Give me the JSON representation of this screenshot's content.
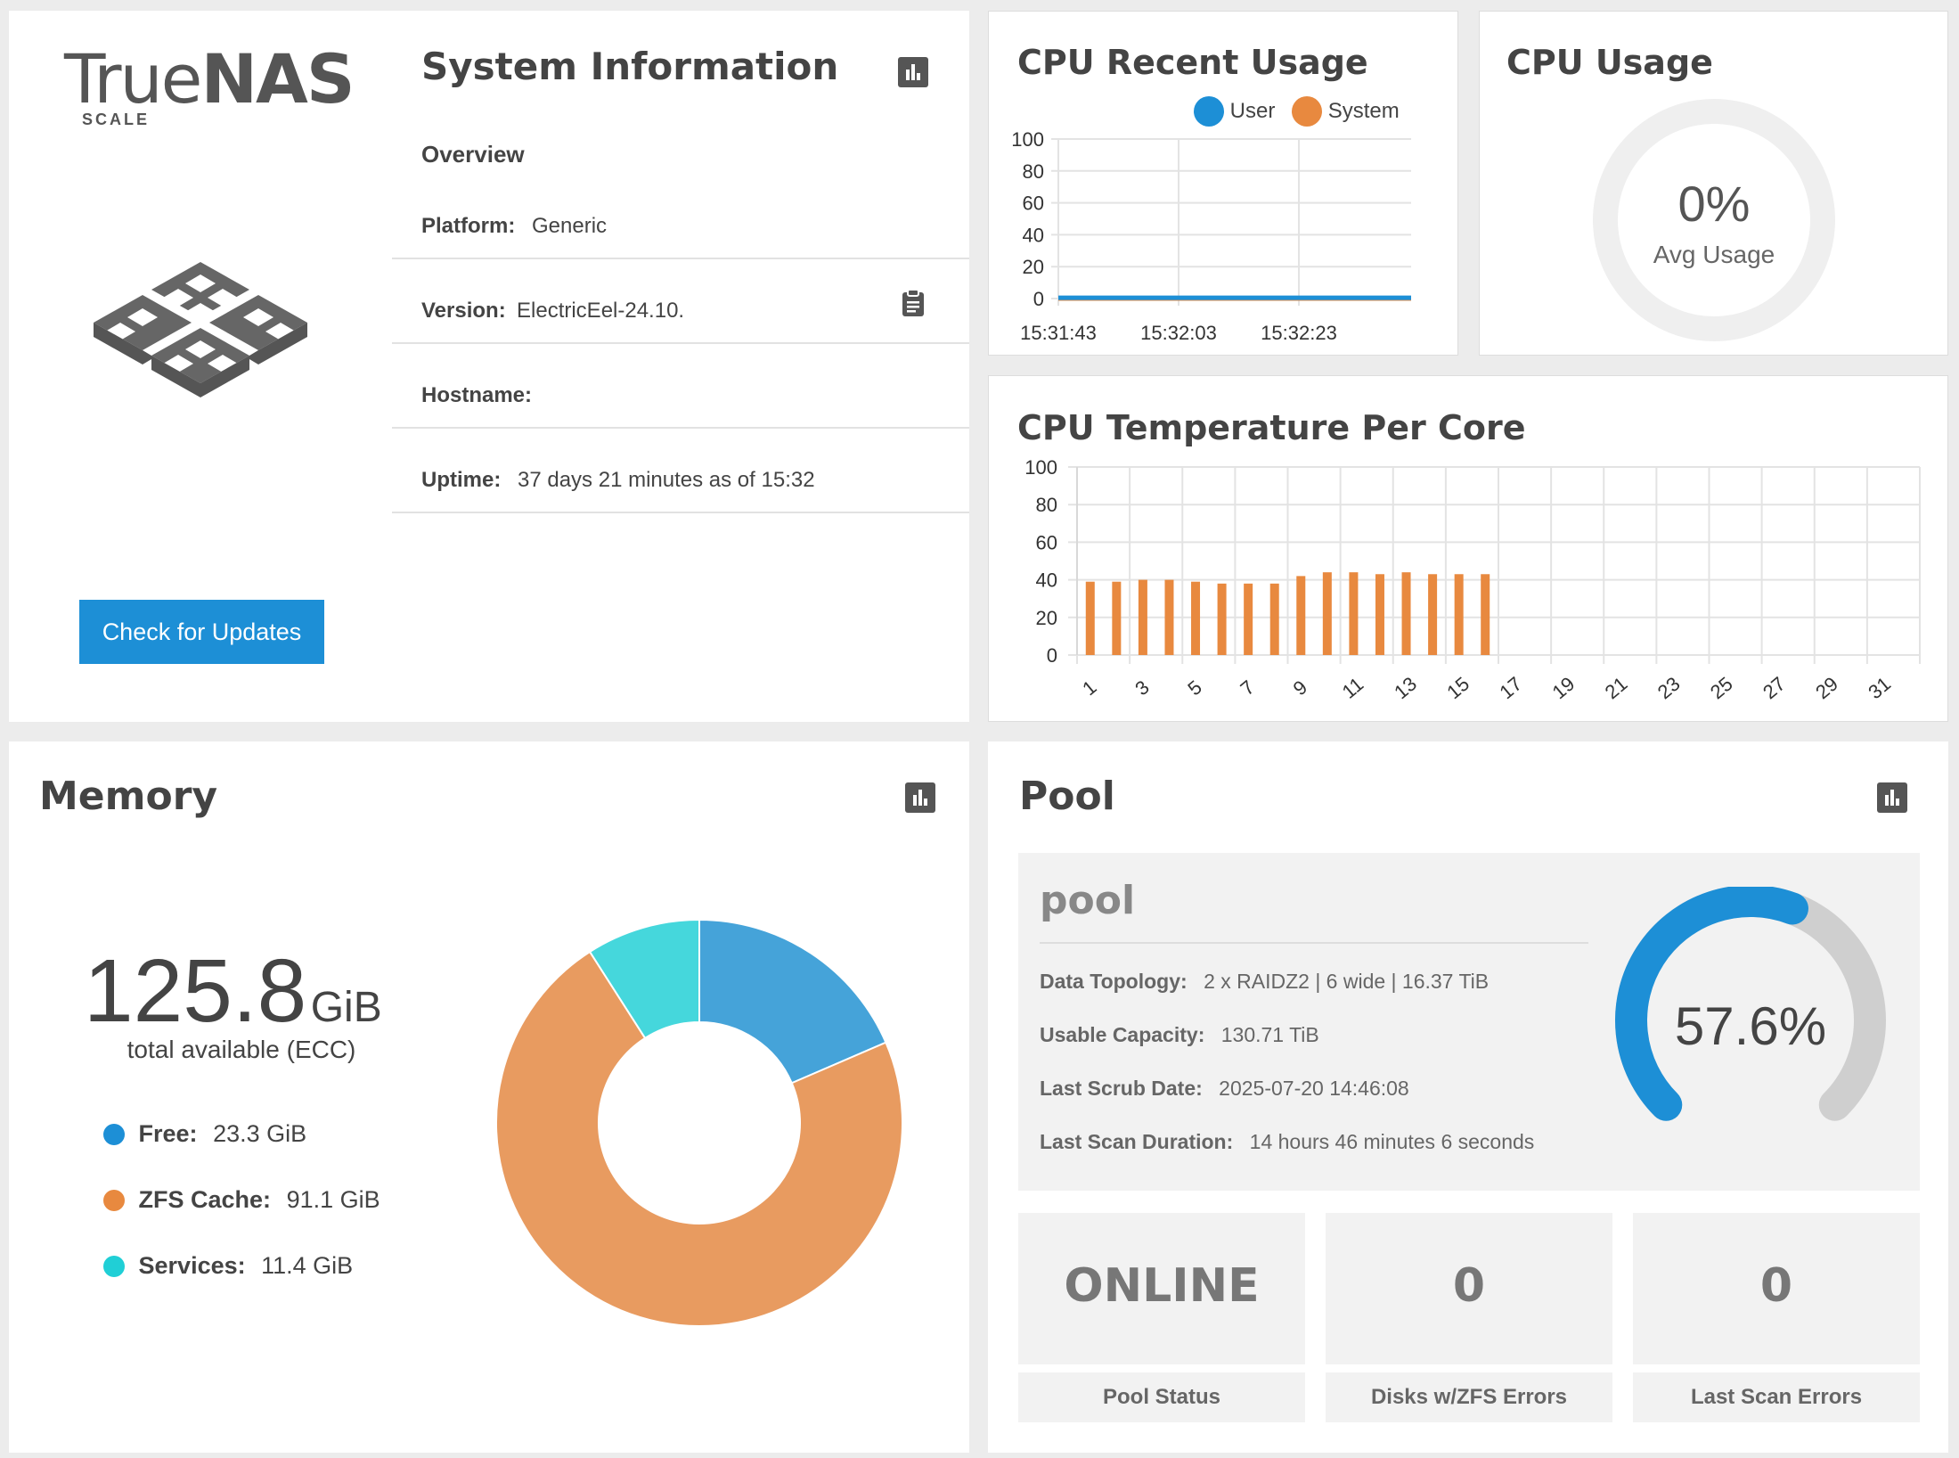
{
  "brand": {
    "name_true": "True",
    "name_nas": "NAS",
    "edition": "SCALE"
  },
  "sysinfo": {
    "title": "System Information",
    "overview": "Overview",
    "platform_label": "Platform:",
    "platform": "Generic",
    "version_label": "Version:",
    "version": "ElectricEel-24.10.",
    "hostname_label": "Hostname:",
    "hostname": "",
    "uptime_label": "Uptime:",
    "uptime": "37 days 21 minutes as of 15:32",
    "update_button": "Check for Updates"
  },
  "cpu_recent": {
    "title": "CPU Recent Usage",
    "chart_data": {
      "type": "line",
      "x": [
        "15:31:43",
        "15:32:03",
        "15:32:23"
      ],
      "ylim": [
        0,
        100
      ],
      "yticks": [
        "100",
        "80",
        "60",
        "40",
        "20",
        "0"
      ],
      "series": [
        {
          "name": "User",
          "color": "#1d8fd6",
          "values": [
            0.5,
            0.5,
            0.5
          ]
        },
        {
          "name": "System",
          "color": "#e8893f",
          "values": [
            0,
            0,
            0
          ]
        }
      ]
    }
  },
  "cpu_usage": {
    "title": "CPU Usage",
    "value": "0%",
    "caption": "Avg Usage"
  },
  "cpu_temp": {
    "title": "CPU Temperature Per Core",
    "chart_data": {
      "type": "bar",
      "ylim": [
        0,
        100
      ],
      "yticks": [
        "100",
        "80",
        "60",
        "40",
        "20",
        "0"
      ],
      "xticks": [
        "1",
        "3",
        "5",
        "7",
        "9",
        "11",
        "13",
        "15",
        "17",
        "19",
        "21",
        "23",
        "25",
        "27",
        "29",
        "31"
      ],
      "values": [
        39,
        39,
        40,
        40,
        39,
        38,
        38,
        38,
        42,
        44,
        44,
        43,
        44,
        43,
        43,
        43
      ],
      "color": "#e8893f"
    }
  },
  "memory": {
    "title": "Memory",
    "total": "125.8",
    "unit": "GiB",
    "caption": "total available (ECC)",
    "legend": [
      {
        "label": "Free:",
        "value": "23.3 GiB",
        "color": "#1d8fd6"
      },
      {
        "label": "ZFS Cache:",
        "value": "91.1 GiB",
        "color": "#e8893f"
      },
      {
        "label": "Services:",
        "value": "11.4 GiB",
        "color": "#20cfd6"
      }
    ],
    "chart_data": {
      "type": "pie",
      "categories": [
        "Free",
        "ZFS Cache",
        "Services"
      ],
      "values": [
        23.3,
        91.1,
        11.4
      ],
      "colors": [
        "#45a3d9",
        "#e89b60",
        "#45d7dc"
      ]
    }
  },
  "pool": {
    "title": "Pool",
    "name": "pool",
    "topology_label": "Data Topology:",
    "topology": "2 x RAIDZ2 | 6 wide | 16.37 TiB",
    "usable_label": "Usable Capacity:",
    "usable": "130.71 TiB",
    "scrub_label": "Last Scrub Date:",
    "scrub": "2025-07-20 14:46:08",
    "duration_label": "Last Scan Duration:",
    "duration": "14 hours 46 minutes 6 seconds",
    "usage_percent": "57.6%",
    "usage_value": 57.6,
    "status": "ONLINE",
    "status_caption": "Pool Status",
    "disk_errors": "0",
    "disk_errors_caption": "Disks w/ZFS Errors",
    "scan_errors": "0",
    "scan_errors_caption": "Last Scan Errors"
  }
}
